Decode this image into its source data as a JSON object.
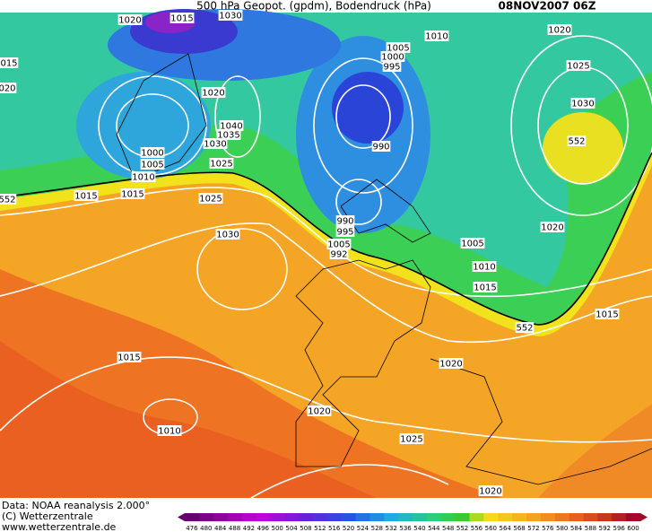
{
  "header": {
    "title": "500 hPa Geopot. (gpdm), Bodendruck (hPa)",
    "timestamp": "08NOV2007 06Z"
  },
  "isobar_labels": [
    "1020",
    "1015",
    "1030",
    "1010",
    "1005",
    "1000",
    "995",
    "1020",
    "1025",
    "1030",
    "552",
    "015",
    "020",
    "1020",
    "1040",
    "1035",
    "1030",
    "1000",
    "1005",
    "1010",
    "990",
    "1025",
    "1015",
    "1015",
    "1025",
    "552",
    "1030",
    "990",
    "995",
    "1005",
    "992",
    "1020",
    "1005",
    "1010",
    "1015",
    "552",
    "1015",
    "1015",
    "1020",
    "1020",
    "1010",
    "1025",
    "1020"
  ],
  "footer": {
    "source": "Data: NOAA reanalysis 2.000°",
    "copyright": "(C) Wetterzentrale",
    "website": "www.wetterzentrale.de"
  },
  "color_scale": {
    "labels": [
      476,
      480,
      484,
      488,
      492,
      496,
      500,
      504,
      508,
      512,
      516,
      520,
      524,
      528,
      532,
      536,
      540,
      544,
      548,
      552,
      556,
      560,
      564,
      568,
      572,
      576,
      580,
      584,
      588,
      592,
      596,
      600
    ]
  }
}
